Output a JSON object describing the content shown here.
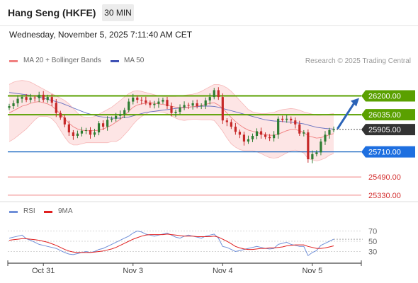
{
  "header": {
    "title": "Hang Seng (HKFE)",
    "timeframe": "30 MIN"
  },
  "datetime": "Wednesday, November 5, 2025 7:11:40 AM CET",
  "credit": "Research © 2025 Trading Central",
  "colors": {
    "candle_up": "#2e7d32",
    "candle_down": "#c62828",
    "ma20": "#f08080",
    "bollinger_fill": "#fde0e0",
    "ma50": "#3f51b5",
    "resistance": "#5aa000",
    "pivot": "#1565c0",
    "support": "#f08080",
    "rsi": "#6f8fd8",
    "rsi_ma": "#e02020",
    "arrow": "#2c64b8",
    "last_price_bg": "#333333"
  },
  "chart_data": [
    {
      "type": "candlestick",
      "legend": [
        {
          "name": "MA 20 + Bollinger Bands",
          "color": "#f08080"
        },
        {
          "name": "MA 50",
          "color": "#3f51b5"
        }
      ],
      "x_ticks": [
        "Oct 31",
        "Nov 3",
        "Nov 4",
        "Nov 5"
      ],
      "ylim": [
        25280,
        26420
      ],
      "last_price": 25905.0,
      "levels": [
        {
          "value": 26200.0,
          "label": "26200.00",
          "kind": "resistance"
        },
        {
          "value": 26035.0,
          "label": "26035.00",
          "kind": "resistance"
        },
        {
          "value": 25710.0,
          "label": "25710.00",
          "kind": "pivot"
        },
        {
          "value": 25490.0,
          "label": "25490.00",
          "kind": "support"
        },
        {
          "value": 25330.0,
          "label": "25330.00",
          "kind": "support"
        }
      ],
      "target_arrow": {
        "from": 25905,
        "to": 26200
      },
      "close": [
        26110,
        26135,
        26175,
        26190,
        26165,
        26185,
        26180,
        26210,
        26165,
        26190,
        26140,
        26050,
        26010,
        25950,
        25880,
        25850,
        25870,
        25895,
        25900,
        25860,
        25880,
        25960,
        25930,
        25990,
        26000,
        26025,
        26040,
        26075,
        26150,
        26185,
        26165,
        26160,
        26140,
        26120,
        26130,
        26150,
        26165,
        26110,
        26050,
        26060,
        26100,
        26120,
        26115,
        26135,
        26110,
        26115,
        26160,
        26190,
        26250,
        26190,
        25985,
        25970,
        25930,
        25885,
        25860,
        25800,
        25820,
        25850,
        25890,
        25860,
        25840,
        25830,
        25860,
        26000,
        25990,
        26000,
        25985,
        25950,
        25870,
        25880,
        25645,
        25690,
        25705,
        25800,
        25860,
        25900,
        25905
      ],
      "ma20": [
        26050,
        26070,
        26090,
        26110,
        26120,
        26135,
        26145,
        26150,
        26140,
        26130,
        26110,
        26080,
        26040,
        26000,
        25960,
        25930,
        25910,
        25900,
        25895,
        25895,
        25895,
        25900,
        25910,
        25925,
        25945,
        25970,
        25995,
        26030,
        26065,
        26100,
        26120,
        26130,
        26135,
        26140,
        26135,
        26130,
        26125,
        26120,
        26110,
        26100,
        26095,
        26095,
        26100,
        26105,
        26110,
        26115,
        26125,
        26135,
        26140,
        26120,
        26090,
        26050,
        26010,
        25975,
        25945,
        25920,
        25900,
        25890,
        25880,
        25870,
        25860,
        25855,
        25855,
        25865,
        25880,
        25895,
        25905,
        25905,
        25895,
        25880,
        25850,
        25840,
        25830,
        25835,
        25845,
        25860,
        25870
      ],
      "bb_upper": [
        26300,
        26320,
        26330,
        26335,
        26330,
        26320,
        26300,
        26280,
        26260,
        26240,
        26220,
        26200,
        26180,
        26160,
        26130,
        26090,
        26050,
        26020,
        26010,
        26010,
        26020,
        26040,
        26060,
        26080,
        26100,
        26130,
        26160,
        26190,
        26220,
        26240,
        26245,
        26240,
        26230,
        26220,
        26210,
        26200,
        26195,
        26195,
        26195,
        26195,
        26200,
        26205,
        26210,
        26215,
        26225,
        26240,
        26260,
        26280,
        26300,
        26300,
        26290,
        26270,
        26240,
        26200,
        26160,
        26120,
        26080,
        26060,
        26050,
        26045,
        26045,
        26050,
        26055,
        26070,
        26080,
        26085,
        26090,
        26085,
        26075,
        26060,
        26050,
        26040,
        26030,
        26030,
        26035,
        26040,
        26045
      ],
      "bb_lower": [
        25800,
        25820,
        25850,
        25880,
        25910,
        25950,
        25990,
        26020,
        26020,
        26020,
        26000,
        25960,
        25900,
        25840,
        25790,
        25770,
        25770,
        25780,
        25790,
        25790,
        25790,
        25790,
        25790,
        25790,
        25800,
        25800,
        25820,
        25860,
        25900,
        25950,
        25990,
        26020,
        26040,
        26060,
        26060,
        26060,
        26055,
        26045,
        26025,
        26005,
        25990,
        25985,
        25990,
        25995,
        25995,
        25990,
        25990,
        25990,
        25985,
        25940,
        25890,
        25830,
        25780,
        25750,
        25730,
        25720,
        25720,
        25720,
        25710,
        25695,
        25675,
        25660,
        25655,
        25660,
        25680,
        25700,
        25720,
        25725,
        25715,
        25700,
        25650,
        25640,
        25630,
        25640,
        25655,
        25680,
        25695
      ],
      "ma50": [
        26230,
        26225,
        26220,
        26215,
        26210,
        26205,
        26200,
        26190,
        26180,
        26170,
        26160,
        26150,
        26140,
        26125,
        26110,
        26095,
        26080,
        26065,
        26050,
        26040,
        26030,
        26020,
        26015,
        26010,
        26005,
        26005,
        26005,
        26010,
        26015,
        26025,
        26035,
        26045,
        26055,
        26060,
        26065,
        26070,
        26075,
        26080,
        26085,
        26090,
        26095,
        26100,
        26100,
        26105,
        26105,
        26110,
        26110,
        26110,
        26108,
        26100,
        26090,
        26080,
        26070,
        26060,
        26050,
        26040,
        26030,
        26020,
        26010,
        26000,
        25990,
        25985,
        25980,
        25978,
        25975,
        25972,
        25970,
        25965,
        25960,
        25955,
        25945,
        25935,
        25925,
        25920,
        25915,
        25912,
        25910
      ]
    },
    {
      "type": "line",
      "legend": [
        {
          "name": "RSI",
          "color": "#6f8fd8"
        },
        {
          "name": "9MA",
          "color": "#e02020"
        }
      ],
      "y_ticks": [
        70,
        50,
        30
      ],
      "ylim": [
        10,
        90
      ],
      "series": [
        {
          "name": "RSI",
          "values": [
            56,
            58,
            60,
            62,
            55,
            52,
            48,
            44,
            42,
            40,
            38,
            36,
            32,
            28,
            25,
            24,
            26,
            28,
            30,
            28,
            30,
            34,
            36,
            40,
            44,
            48,
            52,
            56,
            60,
            66,
            70,
            68,
            64,
            62,
            60,
            62,
            64,
            66,
            62,
            58,
            56,
            60,
            62,
            60,
            58,
            56,
            60,
            62,
            64,
            56,
            40,
            38,
            34,
            30,
            32,
            34,
            36,
            38,
            40,
            38,
            36,
            35,
            36,
            44,
            46,
            48,
            44,
            42,
            40,
            40,
            22,
            28,
            32,
            42,
            46,
            50,
            54
          ]
        },
        {
          "name": "9MA",
          "values": [
            52,
            53,
            54,
            55,
            55,
            54,
            53,
            52,
            50,
            48,
            45,
            42,
            38,
            34,
            31,
            29,
            28,
            28,
            28,
            28,
            29,
            30,
            31,
            33,
            35,
            38,
            42,
            46,
            50,
            54,
            57,
            60,
            62,
            63,
            63,
            63,
            63,
            64,
            63,
            62,
            61,
            60,
            60,
            60,
            59,
            59,
            59,
            59,
            60,
            58,
            54,
            50,
            45,
            40,
            37,
            35,
            34,
            34,
            35,
            36,
            36,
            37,
            37,
            38,
            39,
            41,
            42,
            43,
            43,
            43,
            40,
            38,
            36,
            36,
            37,
            39,
            41
          ]
        }
      ]
    }
  ]
}
